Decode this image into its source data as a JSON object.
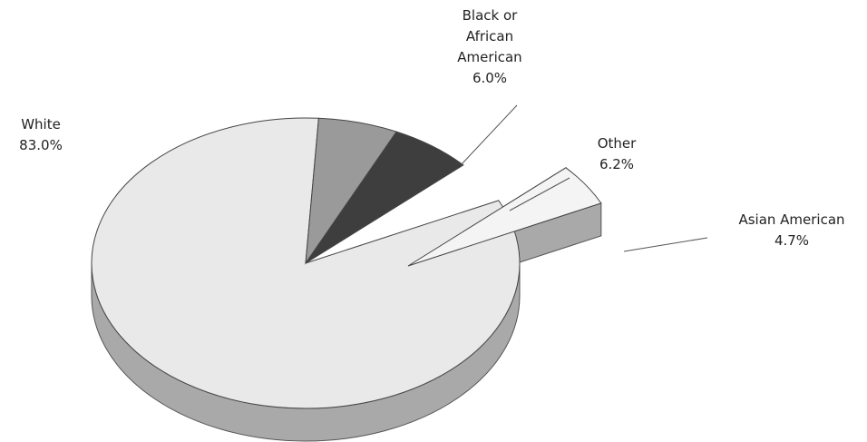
{
  "chart_data": {
    "type": "pie",
    "title": "",
    "style": "3d-exploded",
    "slices": [
      {
        "name": "White",
        "value": 83.0,
        "label_name_lines": [
          "White"
        ],
        "label_value": "83.0%",
        "color": "#e9e9e9",
        "side_color": "#a9a9a9",
        "exploded": false
      },
      {
        "name": "Black or African American",
        "value": 6.0,
        "label_name_lines": [
          "Black or",
          "African",
          "American"
        ],
        "label_value": "6.0%",
        "color": "#9a9a9a",
        "side_color": "#777777",
        "exploded": false
      },
      {
        "name": "Other",
        "value": 6.2,
        "label_name_lines": [
          "Other"
        ],
        "label_value": "6.2%",
        "color": "#3e3e3e",
        "side_color": "#1f1f1f",
        "exploded": false
      },
      {
        "name": "Asian American",
        "value": 4.7,
        "label_name_lines": [
          "Asian American"
        ],
        "label_value": "4.7%",
        "color": "#f4f4f4",
        "side_color": "#a9a9a9",
        "exploded": true
      }
    ],
    "legend": "none",
    "data_labels": "outside-with-leader-lines"
  }
}
